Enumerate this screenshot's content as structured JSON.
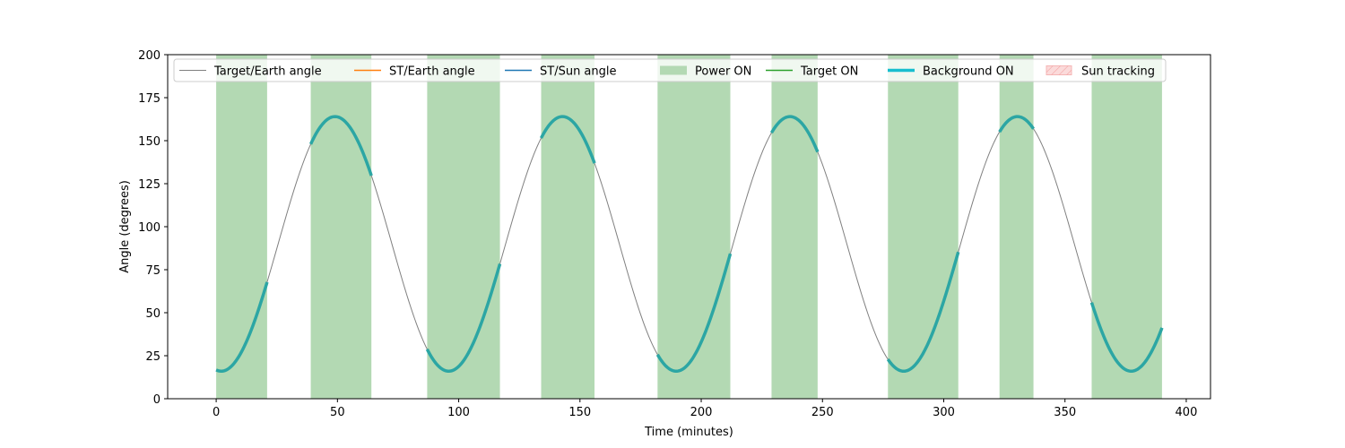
{
  "chart_data": {
    "type": "line",
    "title": "",
    "xlabel": "Time (minutes)",
    "ylabel": "Angle (degrees)",
    "xlim": [
      -20,
      410
    ],
    "ylim": [
      0,
      200
    ],
    "xticks": [
      0,
      50,
      100,
      150,
      200,
      250,
      300,
      350,
      400
    ],
    "yticks": [
      0,
      25,
      50,
      75,
      100,
      125,
      150,
      175,
      200
    ],
    "grid": false,
    "legend_position": "top",
    "colors": {
      "target_earth": "#808080",
      "st_earth": "#ff7f0e",
      "st_sun": "#1f77b4",
      "power_on": "#b3d9b3",
      "target_on": "#2ca02c",
      "background_on": "#17becf",
      "background_on_drawn": "#2ca6a4",
      "sun_tracking": "#fbdada"
    },
    "legend": [
      {
        "label": "Target/Earth angle",
        "kind": "line",
        "color_key": "target_earth",
        "width": 1
      },
      {
        "label": "ST/Earth angle",
        "kind": "line",
        "color_key": "st_earth",
        "width": 1.5
      },
      {
        "label": "ST/Sun angle",
        "kind": "line",
        "color_key": "st_sun",
        "width": 1.5
      },
      {
        "label": "Power ON",
        "kind": "patch",
        "color_key": "power_on"
      },
      {
        "label": "Target ON",
        "kind": "line",
        "color_key": "target_on",
        "width": 1.5
      },
      {
        "label": "Background ON",
        "kind": "line",
        "color_key": "background_on",
        "width": 3.5
      },
      {
        "label": "Sun tracking",
        "kind": "hatch",
        "color_key": "sun_tracking"
      }
    ],
    "series": [
      {
        "name": "Target/Earth angle",
        "model": "sinusoid",
        "mean": 90,
        "amplitude": 74,
        "period_min": 93.8,
        "peak_time_min": 49,
        "x_range": [
          0,
          390
        ]
      }
    ],
    "power_on_intervals": [
      [
        0,
        21
      ],
      [
        39,
        64
      ],
      [
        87,
        117
      ],
      [
        134,
        156
      ],
      [
        182,
        212
      ],
      [
        229,
        248
      ],
      [
        277,
        306
      ],
      [
        323,
        337
      ],
      [
        361,
        390
      ]
    ],
    "background_on_intervals": [
      [
        0,
        21
      ],
      [
        39,
        64
      ],
      [
        87,
        117
      ],
      [
        134,
        156
      ],
      [
        182,
        212
      ],
      [
        229,
        248
      ],
      [
        277,
        306
      ],
      [
        323,
        337
      ],
      [
        361,
        390
      ]
    ]
  }
}
